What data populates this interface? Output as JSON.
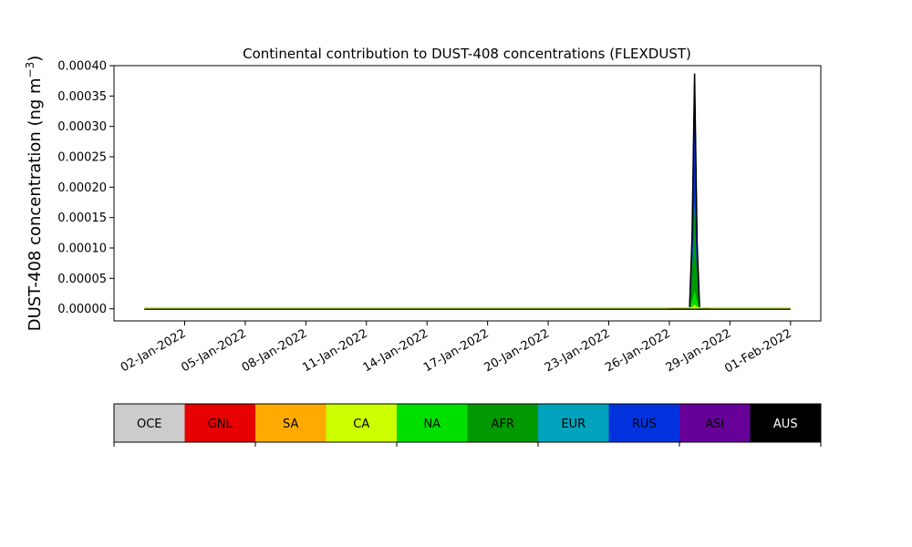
{
  "chart_data": {
    "type": "area",
    "title": "Continental contribution to DUST-408 concentrations (FLEXDUST)",
    "ylabel": "DUST-408 concentration (ng m",
    "ylabel_unit_exponent": "−3",
    "ylabel_suffix": ")",
    "xlabel": "",
    "x_start": "2021-12-31",
    "x_end": "2022-02-01",
    "xlim": [
      "2021-12-29T12:00",
      "2022-02-02T12:00"
    ],
    "ylim": [
      -2e-05,
      0.0004
    ],
    "x_ticks": [
      "2022-01-02",
      "2022-01-05",
      "2022-01-08",
      "2022-01-11",
      "2022-01-14",
      "2022-01-17",
      "2022-01-20",
      "2022-01-23",
      "2022-01-26",
      "2022-01-29",
      "2022-02-01"
    ],
    "x_tick_labels": [
      "02-Jan-2022",
      "05-Jan-2022",
      "08-Jan-2022",
      "11-Jan-2022",
      "14-Jan-2022",
      "17-Jan-2022",
      "20-Jan-2022",
      "23-Jan-2022",
      "26-Jan-2022",
      "29-Jan-2022",
      "01-Feb-2022"
    ],
    "y_ticks": [
      0,
      5e-05,
      0.0001,
      0.00015,
      0.0002,
      0.00025,
      0.0003,
      0.00035,
      0.0004
    ],
    "y_tick_labels": [
      "0.00000",
      "0.00005",
      "0.00010",
      "0.00015",
      "0.00020",
      "0.00025",
      "0.00030",
      "0.00035",
      "0.00040"
    ],
    "x": [
      "2022-01-26T00:00",
      "2022-01-26T12:00",
      "2022-01-26T18:00",
      "2022-01-27T00:00",
      "2022-01-27T03:00",
      "2022-01-27T06:00",
      "2022-01-27T09:00",
      "2022-01-27T12:00",
      "2022-01-28T00:00"
    ],
    "series": [
      {
        "name": "OCE",
        "color": "#cccccc",
        "values": [
          0,
          0,
          0,
          0,
          0,
          0,
          0,
          0,
          0
        ]
      },
      {
        "name": "GNL",
        "color": "#e60000",
        "values": [
          0,
          0,
          0,
          0,
          0,
          0,
          0,
          0,
          0
        ]
      },
      {
        "name": "SA",
        "color": "#ffaa00",
        "values": [
          0,
          0,
          0,
          0,
          0,
          0,
          0,
          0,
          0
        ]
      },
      {
        "name": "CA",
        "color": "#ccff00",
        "values": [
          0,
          0,
          0,
          0,
          4e-06,
          8e-06,
          4e-06,
          0,
          0
        ]
      },
      {
        "name": "NA",
        "color": "#00e000",
        "values": [
          0,
          0,
          0,
          0,
          1.2e-05,
          2.5e-05,
          1.2e-05,
          0,
          0
        ]
      },
      {
        "name": "AFR",
        "color": "#009900",
        "values": [
          0,
          0,
          0,
          0,
          6e-05,
          0.00015,
          5e-05,
          0,
          0
        ]
      },
      {
        "name": "EUR",
        "color": "#00a3bb",
        "values": [
          0,
          0,
          0,
          0,
          4e-06,
          1e-05,
          4e-06,
          0,
          0
        ]
      },
      {
        "name": "RUS",
        "color": "#0033dd",
        "values": [
          0,
          0,
          0,
          0,
          3e-05,
          0.00016,
          3e-05,
          0,
          0
        ]
      },
      {
        "name": "ASI",
        "color": "#660099",
        "values": [
          0,
          0,
          0,
          0,
          4e-06,
          1.5e-05,
          4e-06,
          0,
          0
        ]
      },
      {
        "name": "AUS",
        "color": "#000000",
        "values": [
          0,
          0,
          0,
          0,
          5e-06,
          1.9e-05,
          5e-06,
          0,
          0
        ]
      }
    ],
    "legend_placement": "bottom"
  }
}
